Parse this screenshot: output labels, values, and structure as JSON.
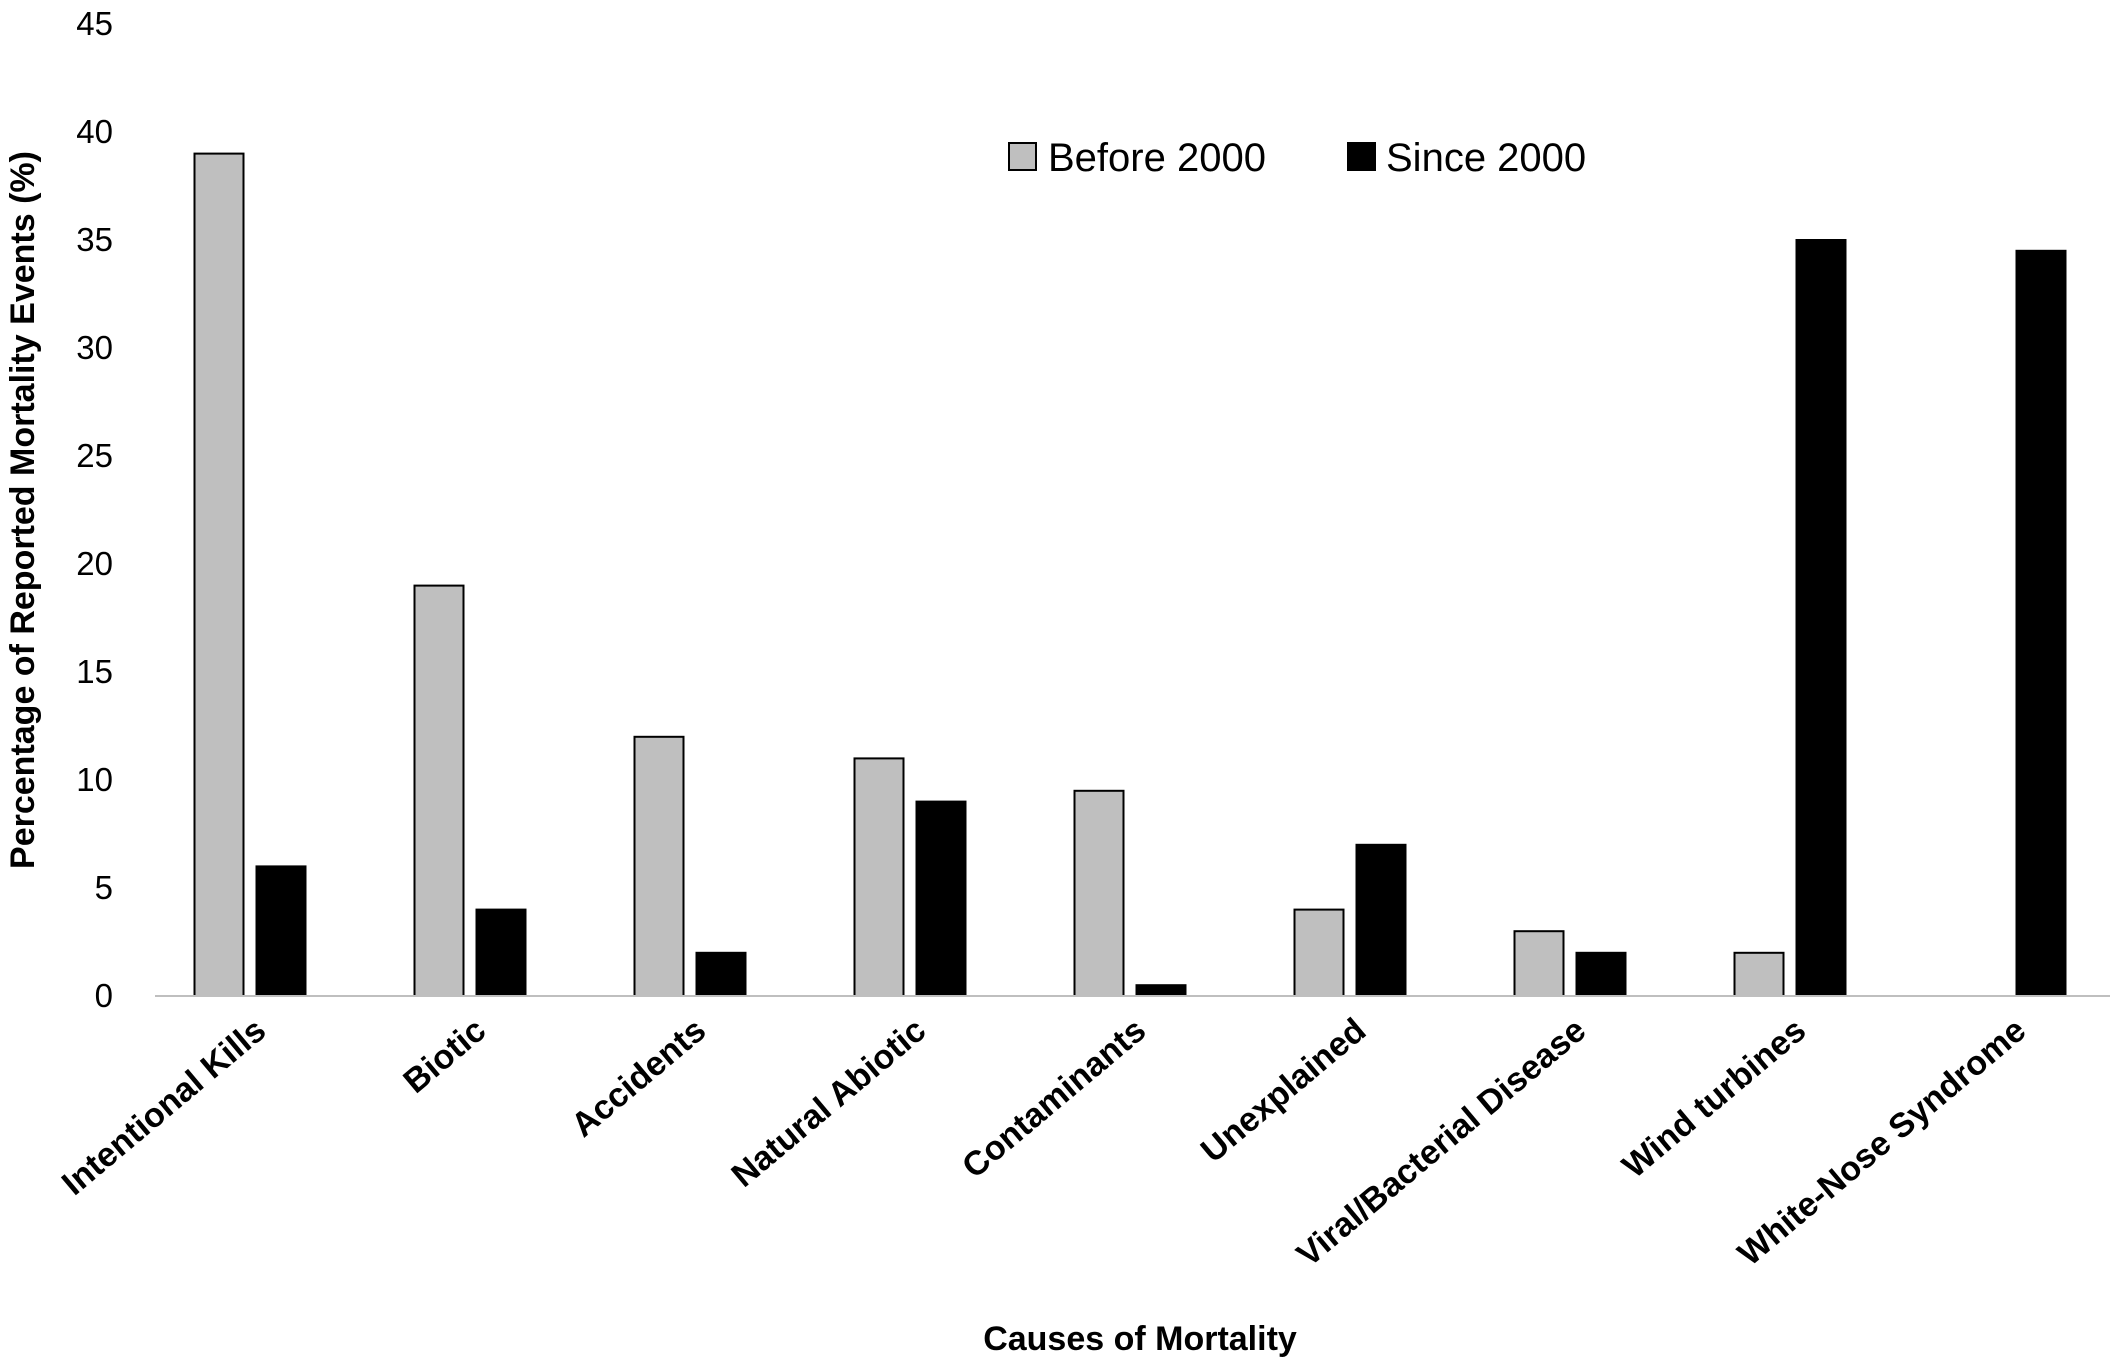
{
  "chart_data": {
    "type": "bar",
    "categories": [
      "Intentional Kills",
      "Biotic",
      "Accidents",
      "Natural Abiotic",
      "Contaminants",
      "Unexplained",
      "Viral/Bacterial Disease",
      "Wind turbines",
      "White-Nose Syndrome"
    ],
    "series": [
      {
        "name": "Before 2000",
        "color": "#bfbfbf",
        "values": [
          39,
          19,
          12,
          11,
          9.5,
          4,
          3,
          2,
          0
        ]
      },
      {
        "name": "Since 2000",
        "color": "#000000",
        "values": [
          6,
          4,
          2,
          9,
          0.5,
          7,
          2,
          35,
          34.5
        ]
      }
    ],
    "title": "",
    "xlabel": "Causes of Mortality",
    "ylabel": "Percentage of Reported Mortality Events (%)",
    "ylim": [
      0,
      45
    ],
    "yticks": [
      0,
      5,
      10,
      15,
      20,
      25,
      30,
      35,
      40,
      45
    ],
    "grid": false,
    "legend_position": "top-right"
  }
}
